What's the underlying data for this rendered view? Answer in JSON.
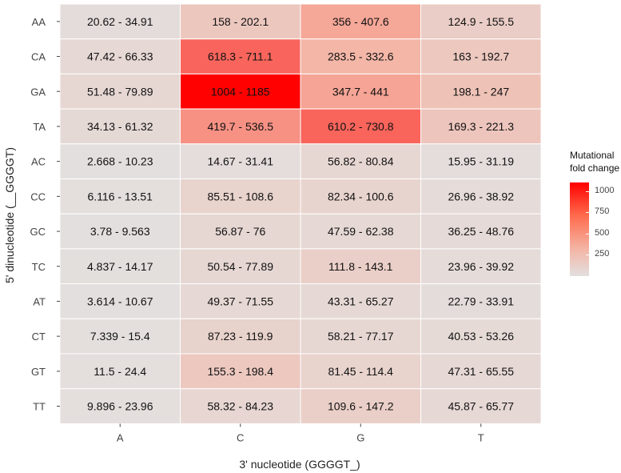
{
  "chart_data": {
    "type": "heatmap",
    "xlabel": "3' nucleotide (GGGGT_)",
    "ylabel": "5' dinucleotide (__GGGGT)",
    "columns": [
      "A",
      "C",
      "G",
      "T"
    ],
    "rows": [
      "AA",
      "CA",
      "GA",
      "TA",
      "AC",
      "CC",
      "GC",
      "TC",
      "AT",
      "CT",
      "GT",
      "TT"
    ],
    "cells": [
      [
        {
          "label": "20.62 - 34.91",
          "value": 28
        },
        {
          "label": "158 - 202.1",
          "value": 180
        },
        {
          "label": "356 - 407.6",
          "value": 382
        },
        {
          "label": "124.9 - 155.5",
          "value": 140
        }
      ],
      [
        {
          "label": "47.42 - 66.33",
          "value": 57
        },
        {
          "label": "618.3 - 711.1",
          "value": 665
        },
        {
          "label": "283.5 - 332.6",
          "value": 308
        },
        {
          "label": "163 - 192.7",
          "value": 178
        }
      ],
      [
        {
          "label": "51.48 - 79.89",
          "value": 66
        },
        {
          "label": "1004 - 1185",
          "value": 1095
        },
        {
          "label": "347.7 - 441",
          "value": 394
        },
        {
          "label": "198.1 - 247",
          "value": 223
        }
      ],
      [
        {
          "label": "34.13 - 61.32",
          "value": 48
        },
        {
          "label": "419.7 - 536.5",
          "value": 478
        },
        {
          "label": "610.2 - 730.8",
          "value": 670
        },
        {
          "label": "169.3 - 221.3",
          "value": 195
        }
      ],
      [
        {
          "label": "2.668 - 10.23",
          "value": 6
        },
        {
          "label": "14.67 - 31.41",
          "value": 23
        },
        {
          "label": "56.82 - 80.84",
          "value": 69
        },
        {
          "label": "15.95 - 31.19",
          "value": 24
        }
      ],
      [
        {
          "label": "6.116 - 13.51",
          "value": 10
        },
        {
          "label": "85.51 - 108.6",
          "value": 97
        },
        {
          "label": "82.34 - 100.6",
          "value": 91
        },
        {
          "label": "26.96 - 38.92",
          "value": 33
        }
      ],
      [
        {
          "label": "3.78 - 9.563",
          "value": 7
        },
        {
          "label": "56.87 - 76",
          "value": 66
        },
        {
          "label": "47.59 - 62.38",
          "value": 55
        },
        {
          "label": "36.25 - 48.76",
          "value": 42
        }
      ],
      [
        {
          "label": "4.837 - 14.17",
          "value": 9
        },
        {
          "label": "50.54 - 77.89",
          "value": 64
        },
        {
          "label": "111.8 - 143.1",
          "value": 127
        },
        {
          "label": "23.96 - 39.92",
          "value": 32
        }
      ],
      [
        {
          "label": "3.614 - 10.67",
          "value": 7
        },
        {
          "label": "49.37 - 71.55",
          "value": 60
        },
        {
          "label": "43.31 - 65.27",
          "value": 54
        },
        {
          "label": "22.79 - 33.91",
          "value": 28
        }
      ],
      [
        {
          "label": "7.339 - 15.4",
          "value": 11
        },
        {
          "label": "87.23 - 119.9",
          "value": 104
        },
        {
          "label": "58.21 - 77.17",
          "value": 68
        },
        {
          "label": "40.53 - 53.26",
          "value": 47
        }
      ],
      [
        {
          "label": "11.5 - 24.4",
          "value": 18
        },
        {
          "label": "155.3 - 198.4",
          "value": 177
        },
        {
          "label": "81.45 - 114.4",
          "value": 98
        },
        {
          "label": "47.31 - 65.55",
          "value": 56
        }
      ],
      [
        {
          "label": "9.896 - 23.96",
          "value": 17
        },
        {
          "label": "58.32 - 84.23",
          "value": 71
        },
        {
          "label": "109.6 - 147.2",
          "value": 128
        },
        {
          "label": "45.87 - 65.77",
          "value": 56
        }
      ]
    ],
    "legend": {
      "title_lines": [
        "Mutational",
        "fold change"
      ],
      "ticks": [
        1000,
        750,
        500,
        250
      ],
      "range": [
        0,
        1100
      ],
      "colors": {
        "low": "#e3e0df",
        "mid": "#f4b3a3",
        "high": "#ff0000"
      }
    },
    "grid": false,
    "legend_position": "right",
    "colors": {
      "panel": "#ebebeb",
      "cell_border": "#ffffff",
      "text": "#111111",
      "tick_text": "#444444"
    }
  }
}
